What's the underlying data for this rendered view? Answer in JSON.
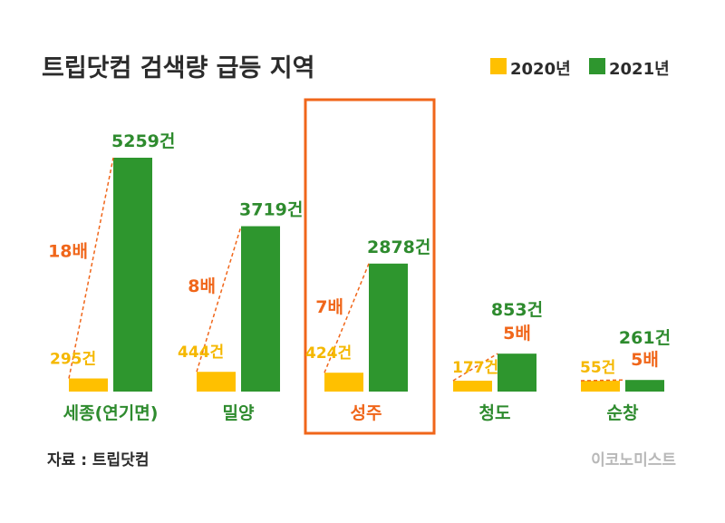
{
  "title": "트립닷컴 검색량 급등 지역",
  "source": "자료 : 트립닷컴",
  "brand": "이코노미스트",
  "colors": {
    "y2020": "#ffc000",
    "y2021": "#2e962e",
    "accent": "#f0661a",
    "label_green": "#2e8b2e"
  },
  "chart_data": {
    "type": "bar",
    "title": "트립닷컴 검색량 급등 지역",
    "categories": [
      "세종(연기면)",
      "밀양",
      "성주",
      "청도",
      "순창"
    ],
    "series": [
      {
        "name": "2020년",
        "values": [
          295,
          444,
          424,
          177,
          55
        ],
        "labels": [
          "295건",
          "444건",
          "424건",
          "177건",
          "55건"
        ]
      },
      {
        "name": "2021년",
        "values": [
          5259,
          3719,
          2878,
          853,
          261
        ],
        "labels": [
          "5259건",
          "3719건",
          "2878건",
          "853건",
          "261건"
        ]
      }
    ],
    "ratios": [
      "18배",
      "8배",
      "7배",
      "5배",
      "5배"
    ],
    "highlight_category": "성주",
    "legend": "top-right",
    "grid": false,
    "ylim": [
      0,
      5259
    ]
  }
}
